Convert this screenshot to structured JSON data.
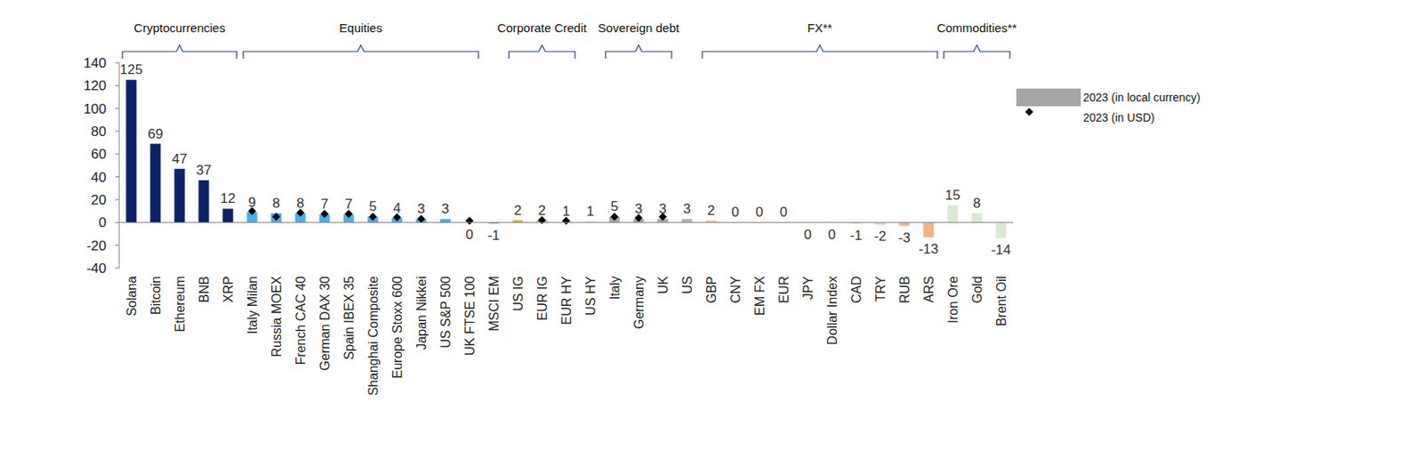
{
  "chart_data": {
    "type": "bar",
    "categories": [
      "Solana",
      "Bitcoin",
      "Ethereum",
      "BNB",
      "XRP",
      "Italy Milan",
      "Russia MOEX",
      "French CAC 40",
      "German DAX 30",
      "Spain IBEX 35",
      "Shanghai Composite",
      "Europe Stoxx 600",
      "Japan Nikkei",
      "US S&P 500",
      "UK FTSE 100",
      "MSCI EM",
      "US IG",
      "EUR IG",
      "EUR HY",
      "US HY",
      "Italy",
      "Germany",
      "UK",
      "US",
      "GBP",
      "CNY",
      "EM FX",
      "EUR",
      "JPY",
      "Dollar Index",
      "CAD",
      "TRY",
      "RUB",
      "ARS",
      "Iron Ore",
      "Gold",
      "Brent Oil"
    ],
    "series": [
      {
        "name": "2023 (in local currency)",
        "type": "bar",
        "color": "#a6a6a6",
        "colors": [
          "#0d2264",
          "#0d2264",
          "#0d2264",
          "#0d2264",
          "#0d2264",
          "#4baee8",
          "#4baee8",
          "#4baee8",
          "#4baee8",
          "#4baee8",
          "#4baee8",
          "#4baee8",
          "#4baee8",
          "#4baee8",
          "#4baee8",
          "#4baee8",
          "#cdbb3c",
          "#cdbb3c",
          "#e6d97a",
          "#efe6a0",
          "#a6a6a6",
          "#a6a6a6",
          "#a6a6a6",
          "#b5b5b5",
          "#f8cbad",
          "#f8cbad",
          "#f8cbad",
          "#f8cbad",
          "#f8cbad",
          "#f8cbad",
          "#f8cbad",
          "#f8cbad",
          "#f4b183",
          "#f4b183",
          "#d9ead3",
          "#d9ead3",
          "#d9ead3"
        ],
        "values": [
          125,
          69,
          47,
          37,
          12,
          9,
          8,
          8,
          7,
          7,
          5,
          4,
          3,
          3,
          -0.3,
          -1,
          2,
          2,
          1,
          1,
          5,
          3,
          3,
          3,
          2,
          0,
          0,
          0,
          -0.3,
          -0.3,
          -1,
          -2,
          -3,
          -13,
          15,
          8,
          -14
        ],
        "value_labels": [
          "125",
          "69",
          "47",
          "37",
          "12",
          "9",
          "8",
          "8",
          "7",
          "7",
          "5",
          "4",
          "3",
          "3",
          "0",
          "-1",
          "2",
          "2",
          "1",
          "1",
          "5",
          "3",
          "3",
          "3",
          "2",
          "0",
          "0",
          "0",
          "0",
          "0",
          "-1",
          "-2",
          "-3",
          "-13",
          "15",
          "8",
          "-14"
        ]
      },
      {
        "name": "2023 (in USD)",
        "type": "scatter",
        "marker": "diamond",
        "color": "#000000",
        "values": [
          null,
          null,
          null,
          null,
          null,
          10,
          5,
          8.5,
          7.5,
          7.5,
          5,
          4.5,
          3,
          null,
          1.5,
          null,
          null,
          2,
          1.5,
          null,
          5,
          4,
          5,
          null,
          null,
          null,
          null,
          null,
          null,
          null,
          null,
          null,
          null,
          null,
          null,
          null,
          null
        ]
      }
    ],
    "groups": [
      {
        "label": "Cryptocurrencies",
        "from": 0,
        "to": 4
      },
      {
        "label": "Equities",
        "from": 5,
        "to": 14
      },
      {
        "label": "Corporate Credit",
        "from": 16,
        "to": 18
      },
      {
        "label": "Sovereign debt",
        "from": 20,
        "to": 22
      },
      {
        "label": "FX**",
        "from": 24,
        "to": 33
      },
      {
        "label": "Commodities**",
        "from": 34,
        "to": 36
      }
    ],
    "ylim": [
      -40,
      140
    ],
    "yticks": [
      -40,
      -20,
      0,
      20,
      40,
      60,
      80,
      100,
      120,
      140
    ],
    "grid": false,
    "legend": "right",
    "data_labels": true
  }
}
